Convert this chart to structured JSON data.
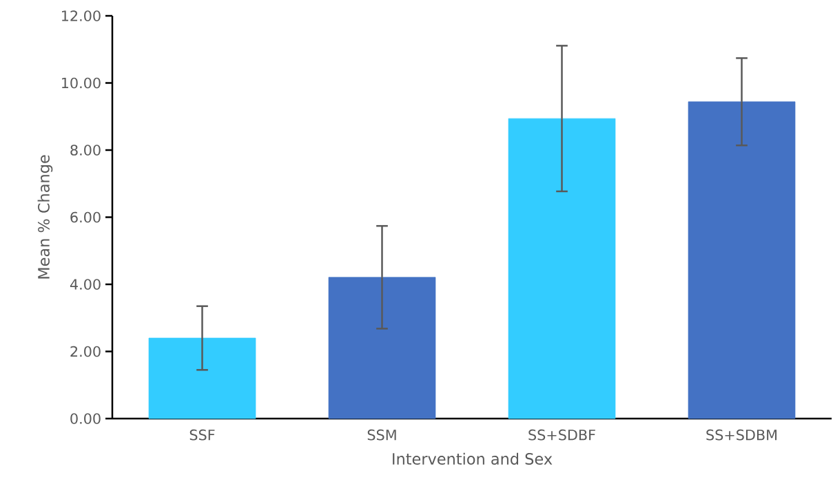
{
  "chart_data": {
    "type": "bar",
    "xlabel": "Intervention and Sex",
    "ylabel": "Mean % Change",
    "categories": [
      "SSF",
      "SSM",
      "SS+SDBF",
      "SS+SDBM"
    ],
    "values": [
      2.4,
      4.21,
      8.94,
      9.44
    ],
    "errors": [
      0.95,
      1.53,
      2.17,
      1.3
    ],
    "colors": [
      "#33ccff",
      "#4472c4",
      "#33ccff",
      "#4472c4"
    ],
    "ylim": [
      0,
      12
    ],
    "yticks": [
      {
        "value": 0,
        "label": "0.00"
      },
      {
        "value": 2,
        "label": "2.00"
      },
      {
        "value": 4,
        "label": "4.00"
      },
      {
        "value": 6,
        "label": "6.00"
      },
      {
        "value": 8,
        "label": "8.00"
      },
      {
        "value": 10,
        "label": "10.00"
      },
      {
        "value": 12,
        "label": "12.00"
      }
    ]
  }
}
